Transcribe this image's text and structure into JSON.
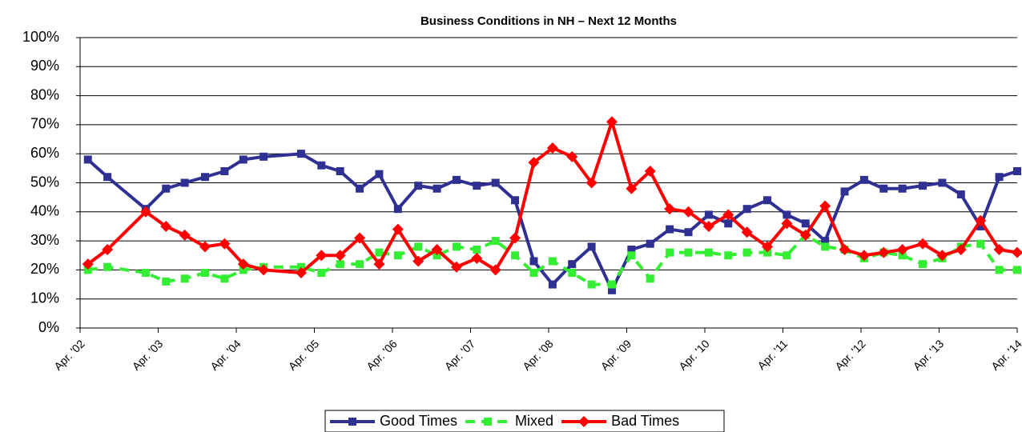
{
  "chart_data": {
    "type": "line",
    "title": "Business Conditions in NH – Next 12 Months",
    "x": [
      2002.35,
      2002.6,
      2003.09,
      2003.35,
      2003.59,
      2003.85,
      2004.1,
      2004.34,
      2004.6,
      2005.08,
      2005.34,
      2005.58,
      2005.83,
      2006.08,
      2006.32,
      2006.58,
      2006.82,
      2007.07,
      2007.33,
      2007.57,
      2007.82,
      2008.06,
      2008.3,
      2008.55,
      2008.8,
      2009.06,
      2009.31,
      2009.55,
      2009.8,
      2010.04,
      2010.3,
      2010.55,
      2010.79,
      2011.05,
      2011.3,
      2011.54,
      2011.79,
      2012.04,
      2012.29,
      2012.54,
      2012.78,
      2013.04,
      2013.29,
      2013.53,
      2013.78,
      2014.02,
      2014.25
    ],
    "series": [
      {
        "name": "Good Times",
        "color": "#2e3192",
        "marker": "square",
        "dashed": false,
        "values": [
          58,
          52,
          41,
          48,
          50,
          52,
          54,
          58,
          59,
          60,
          56,
          54,
          48,
          53,
          41,
          49,
          48,
          51,
          49,
          50,
          44,
          23,
          15,
          22,
          28,
          13,
          27,
          29,
          34,
          33,
          39,
          36,
          41,
          44,
          39,
          36,
          30,
          47,
          51,
          48,
          48,
          49,
          50,
          46,
          35,
          52,
          54
        ]
      },
      {
        "name": "Mixed",
        "color": "#33ee33",
        "marker": "square",
        "dashed": true,
        "values": [
          20,
          21,
          19,
          16,
          17,
          19,
          17,
          20,
          21,
          21,
          19,
          22,
          22,
          26,
          25,
          28,
          25,
          28,
          27,
          30,
          25,
          19,
          23,
          19,
          15,
          15,
          25,
          17,
          26,
          26,
          26,
          25,
          26,
          26,
          25,
          32,
          28,
          27,
          24,
          26,
          25,
          22,
          24,
          28,
          29,
          20,
          20
        ]
      },
      {
        "name": "Bad Times",
        "color": "#ff0000",
        "marker": "diamond",
        "dashed": false,
        "values": [
          22,
          27,
          40,
          35,
          32,
          28,
          29,
          22,
          20,
          19,
          25,
          25,
          31,
          22,
          34,
          23,
          27,
          21,
          24,
          20,
          31,
          57,
          62,
          59,
          50,
          71,
          48,
          54,
          41,
          40,
          35,
          39,
          33,
          28,
          36,
          32,
          42,
          27,
          25,
          26,
          27,
          29,
          25,
          27,
          37,
          27,
          26
        ]
      }
    ],
    "xlim": [
      2002.25,
      2014.25
    ],
    "xticks": [
      {
        "value": 2002.25,
        "label": "Apr. '02"
      },
      {
        "value": 2003.25,
        "label": "Apr. '03"
      },
      {
        "value": 2004.25,
        "label": "Apr. '04"
      },
      {
        "value": 2005.25,
        "label": "Apr. '05"
      },
      {
        "value": 2006.25,
        "label": "Apr. '06"
      },
      {
        "value": 2007.25,
        "label": "Apr. '07"
      },
      {
        "value": 2008.25,
        "label": "Apr. '08"
      },
      {
        "value": 2009.25,
        "label": "Apr. '09"
      },
      {
        "value": 2010.25,
        "label": "Apr. '10"
      },
      {
        "value": 2011.25,
        "label": "Apr. '11"
      },
      {
        "value": 2012.25,
        "label": "Apr. '12"
      },
      {
        "value": 2013.25,
        "label": "Apr. '13"
      },
      {
        "value": 2014.25,
        "label": "Apr. '14"
      }
    ],
    "ylim": [
      0,
      100
    ],
    "yticks": [
      {
        "value": 0,
        "label": "0%"
      },
      {
        "value": 10,
        "label": "10%"
      },
      {
        "value": 20,
        "label": "20%"
      },
      {
        "value": 30,
        "label": "30%"
      },
      {
        "value": 40,
        "label": "40%"
      },
      {
        "value": 50,
        "label": "50%"
      },
      {
        "value": 60,
        "label": "60%"
      },
      {
        "value": 70,
        "label": "70%"
      },
      {
        "value": 80,
        "label": "80%"
      },
      {
        "value": 90,
        "label": "90%"
      },
      {
        "value": 100,
        "label": "100%"
      }
    ],
    "grid": true,
    "legend": "bottom"
  }
}
